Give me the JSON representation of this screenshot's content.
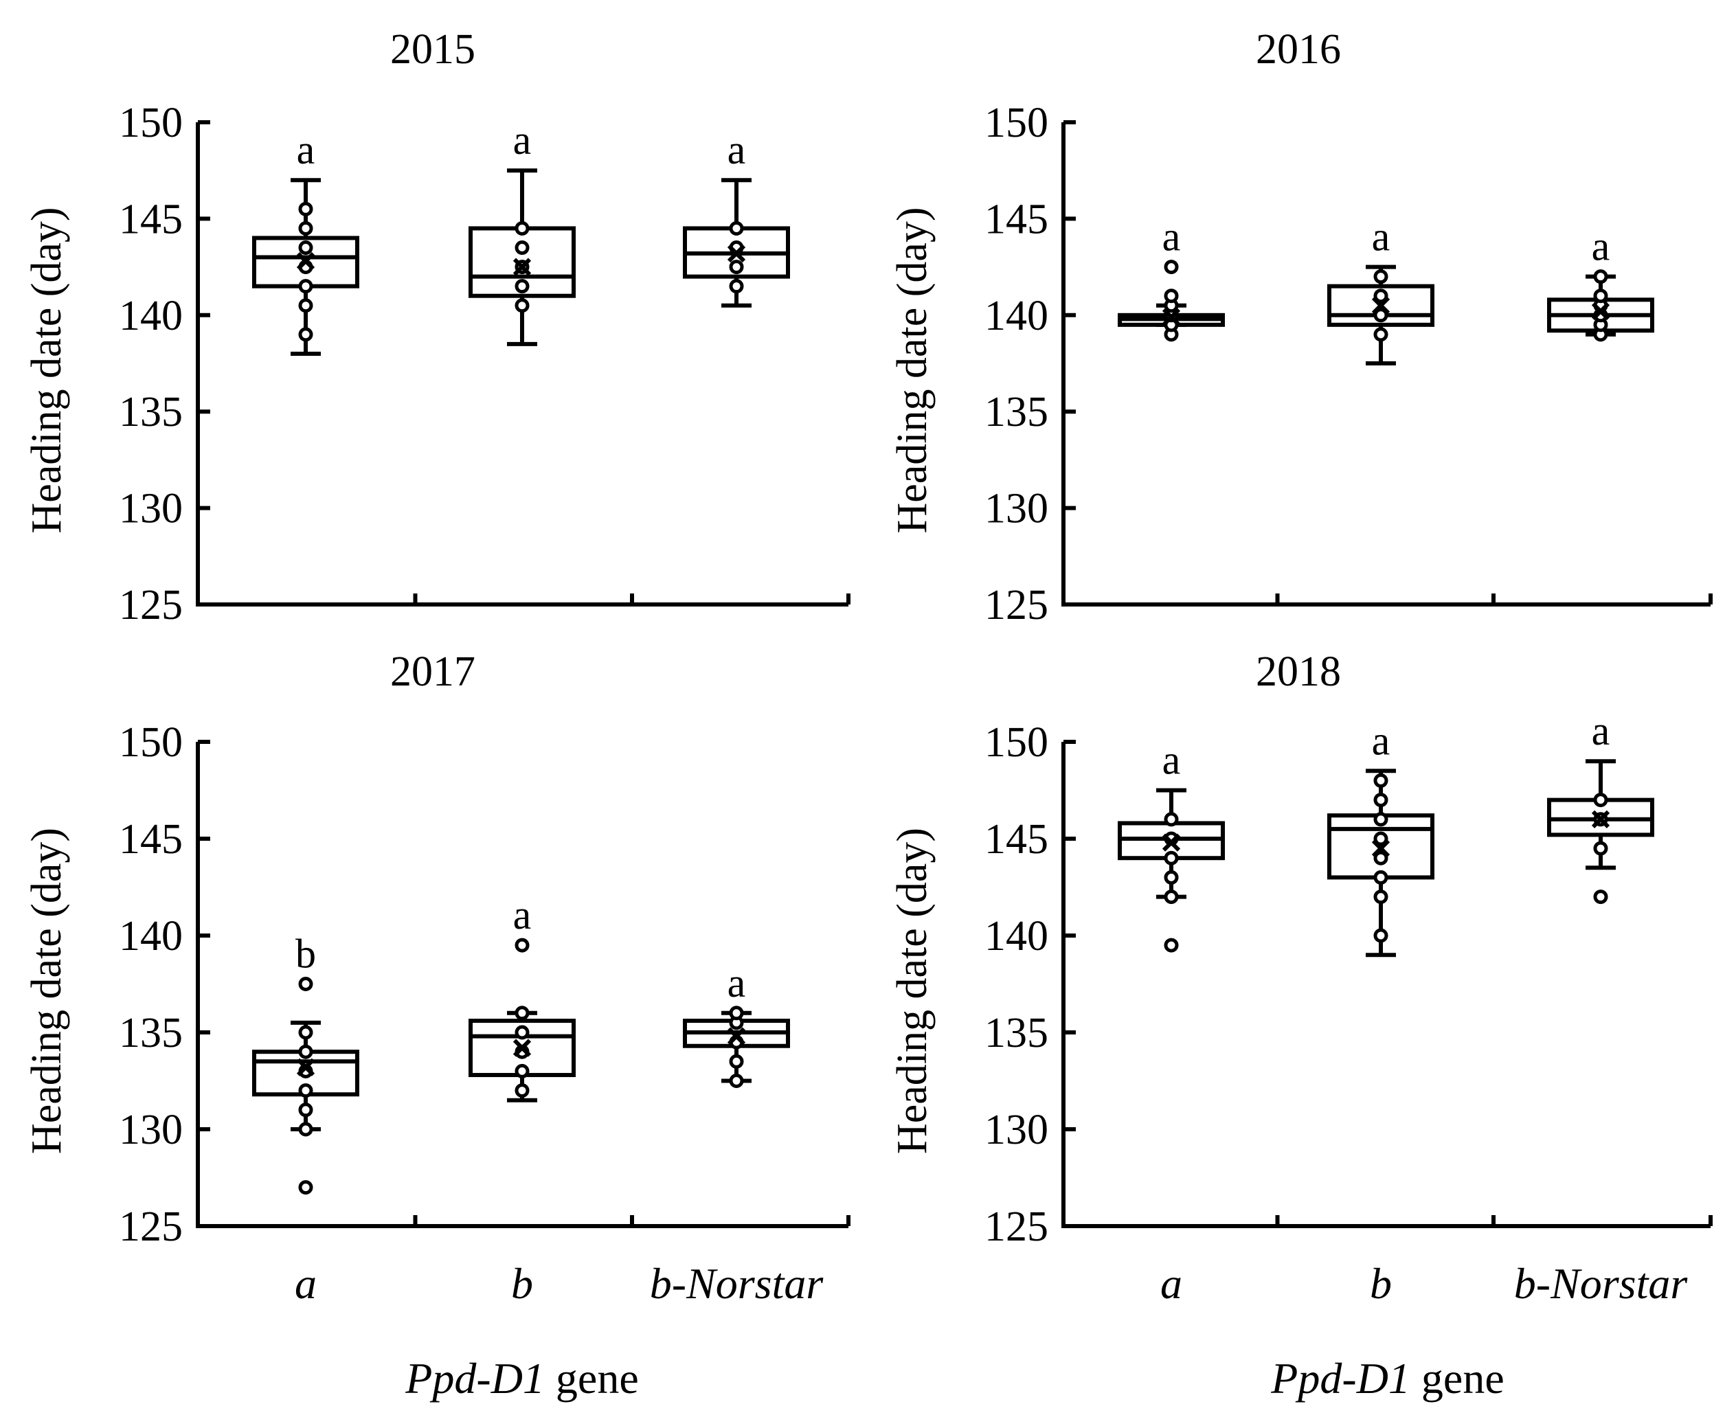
{
  "chart_data": [
    {
      "type": "box",
      "title": "2015",
      "ylabel": "Heading date (day)",
      "ylim": [
        125,
        150
      ],
      "yticks": [
        125,
        130,
        135,
        140,
        145,
        150
      ],
      "xlabel": "",
      "categories": [
        "a",
        "b",
        "b-Norstar"
      ],
      "boxes": [
        {
          "category": "a",
          "whisker_low": 138,
          "q1": 141.5,
          "median": 143,
          "q3": 144,
          "whisker_high": 147,
          "mean": 142.8,
          "points": [
            139,
            140.5,
            141.5,
            142.5,
            143.5,
            144.5,
            145.5
          ],
          "letter": "a"
        },
        {
          "category": "b",
          "whisker_low": 138.5,
          "q1": 141,
          "median": 142,
          "q3": 144.5,
          "whisker_high": 147.5,
          "mean": 142.5,
          "points": [
            140.5,
            141.5,
            142.5,
            143.5,
            144.5
          ],
          "letter": "a"
        },
        {
          "category": "b-Norstar",
          "whisker_low": 140.5,
          "q1": 142,
          "median": 143.2,
          "q3": 144.5,
          "whisker_high": 147,
          "mean": 143.2,
          "points": [
            141.5,
            142.5,
            143.5,
            144.5
          ],
          "letter": "a"
        }
      ]
    },
    {
      "type": "box",
      "title": "2016",
      "ylabel": "Heading date (day)",
      "ylim": [
        125,
        150
      ],
      "yticks": [
        125,
        130,
        135,
        140,
        145,
        150
      ],
      "xlabel": "",
      "categories": [
        "a",
        "b",
        "b-Norstar"
      ],
      "boxes": [
        {
          "category": "a",
          "whisker_low": 139.5,
          "q1": 139.5,
          "median": 139.8,
          "q3": 140,
          "whisker_high": 140.5,
          "mean": 139.9,
          "points": [
            139,
            139.5,
            140,
            140.5,
            141,
            142.5
          ],
          "letter": "a"
        },
        {
          "category": "b",
          "whisker_low": 137.5,
          "q1": 139.5,
          "median": 140,
          "q3": 141.5,
          "whisker_high": 142.5,
          "mean": 140.5,
          "points": [
            139,
            140,
            141,
            142
          ],
          "letter": "a"
        },
        {
          "category": "b-Norstar",
          "whisker_low": 139,
          "q1": 139.2,
          "median": 140,
          "q3": 140.8,
          "whisker_high": 142,
          "mean": 140.2,
          "points": [
            139,
            139.5,
            140,
            140.5,
            141,
            142
          ],
          "letter": "a"
        }
      ]
    },
    {
      "type": "box",
      "title": "2017",
      "ylabel": "Heading date (day)",
      "ylim": [
        125,
        150
      ],
      "yticks": [
        125,
        130,
        135,
        140,
        145,
        150
      ],
      "xlabel": "",
      "categories": [
        "a",
        "b",
        "b-Norstar"
      ],
      "boxes": [
        {
          "category": "a",
          "whisker_low": 130,
          "q1": 131.8,
          "median": 133.5,
          "q3": 134,
          "whisker_high": 135.5,
          "mean": 133.2,
          "points": [
            127,
            130,
            131,
            132,
            133,
            134,
            135,
            137.5
          ],
          "letter": "b"
        },
        {
          "category": "b",
          "whisker_low": 131.5,
          "q1": 132.8,
          "median": 134.8,
          "q3": 135.6,
          "whisker_high": 136,
          "mean": 134.2,
          "points": [
            132,
            133,
            134,
            135,
            136,
            139.5
          ],
          "letter": "a"
        },
        {
          "category": "b-Norstar",
          "whisker_low": 132.5,
          "q1": 134.3,
          "median": 135,
          "q3": 135.6,
          "whisker_high": 136,
          "mean": 134.8,
          "points": [
            132.5,
            133.5,
            134.5,
            135.5,
            136
          ],
          "letter": "a"
        }
      ]
    },
    {
      "type": "box",
      "title": "2018",
      "ylabel": "Heading date (day)",
      "ylim": [
        125,
        150
      ],
      "yticks": [
        125,
        130,
        135,
        140,
        145,
        150
      ],
      "xlabel": "",
      "categories": [
        "a",
        "b",
        "b-Norstar"
      ],
      "boxes": [
        {
          "category": "a",
          "whisker_low": 142,
          "q1": 144,
          "median": 145,
          "q3": 145.8,
          "whisker_high": 147.5,
          "mean": 144.8,
          "points": [
            139.5,
            142,
            143,
            144,
            145,
            146
          ],
          "letter": "a"
        },
        {
          "category": "b",
          "whisker_low": 139,
          "q1": 143,
          "median": 145.5,
          "q3": 146.2,
          "whisker_high": 148.5,
          "mean": 144.5,
          "points": [
            140,
            142,
            143,
            144,
            145,
            146,
            147,
            148
          ],
          "letter": "a"
        },
        {
          "category": "b-Norstar",
          "whisker_low": 143.5,
          "q1": 145.2,
          "median": 146,
          "q3": 147,
          "whisker_high": 149,
          "mean": 146,
          "points": [
            142,
            144.5,
            146,
            147
          ],
          "letter": "a"
        }
      ]
    }
  ],
  "x_axis_title": {
    "italic": "Ppd-D1",
    "rest": " gene"
  }
}
